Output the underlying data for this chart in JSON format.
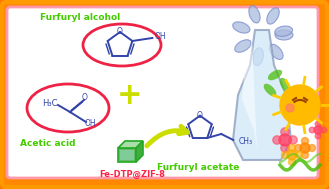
{
  "bg_outer_color": "#FF8800",
  "furfuryl_alcohol_label": "Furfuryl alcohol",
  "acetic_acid_label": "Acetic acid",
  "catalyst_label": "Fe-DTP@ZIF-8",
  "product_label": "Furfuryl acetate",
  "label_color_green": "#44CC00",
  "label_color_red": "#FF2244",
  "ellipse_color": "#EE2244",
  "plus_color": "#CCDD00",
  "arrow_color": "#CCDD00",
  "furan_ring_color": "#3344AA",
  "figsize": [
    3.29,
    1.89
  ],
  "dpi": 100
}
